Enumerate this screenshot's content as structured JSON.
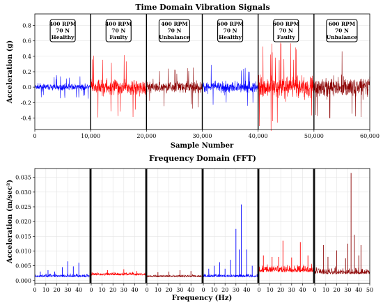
{
  "chart_data": [
    {
      "type": "line",
      "title": "Time Domain Vibration Signals",
      "xlabel": "Sample Number",
      "ylabel": "Acceleration (g)",
      "xlim": [
        0,
        60000
      ],
      "ylim": [
        -0.55,
        0.95
      ],
      "x_ticks": [
        "0",
        "10,000",
        "20,000",
        "30,000",
        "40,000",
        "50,000",
        "60,000"
      ],
      "y_ticks": [
        "-0.4",
        "-0.2",
        "0.0",
        "0.2",
        "0.4",
        "0.6",
        "0.8"
      ],
      "grid": true,
      "segments": [
        {
          "x_range": [
            0,
            10000
          ],
          "color": "#0000ff",
          "rpm": "400 RPM",
          "load": "70 N",
          "condition": "Healthy",
          "typical_amplitude": 0.07,
          "peak": 0.16
        },
        {
          "x_range": [
            10000,
            20000
          ],
          "color": "#ff0000",
          "rpm": "400 RPM",
          "load": "70 N",
          "condition": "Faulty",
          "typical_amplitude": 0.18,
          "peak": 0.45
        },
        {
          "x_range": [
            20000,
            30000
          ],
          "color": "#8b0000",
          "rpm": "400 RPM",
          "load": "70 N",
          "condition": "Unbalance",
          "typical_amplitude": 0.13,
          "peak": 0.28
        },
        {
          "x_range": [
            30000,
            40000
          ],
          "color": "#0000ff",
          "rpm": "600 RPM",
          "load": "70 N",
          "condition": "Healthy",
          "typical_amplitude": 0.13,
          "peak": 0.3
        },
        {
          "x_range": [
            40000,
            50000
          ],
          "color": "#ff0000",
          "rpm": "600 RPM",
          "load": "70 N",
          "condition": "Faulty",
          "typical_amplitude": 0.25,
          "peak": 0.58
        },
        {
          "x_range": [
            50000,
            60000
          ],
          "color": "#8b0000",
          "rpm": "600 RPM",
          "load": "70 N",
          "condition": "Unbalance",
          "typical_amplitude": 0.22,
          "peak": 0.55
        }
      ]
    },
    {
      "type": "line",
      "title": "Frequency Domain (FFT)",
      "xlabel": "Frequency (Hz)",
      "ylabel": "Acceleration (m/sec²)",
      "xlim_per_panel": [
        0,
        50
      ],
      "ylim": [
        -0.001,
        0.038
      ],
      "x_ticks": [
        "0",
        "10",
        "20",
        "30",
        "40"
      ],
      "x_ticks_last_panel": [
        "0",
        "10",
        "20",
        "30",
        "40",
        "50"
      ],
      "y_ticks": [
        "0.000",
        "0.005",
        "0.010",
        "0.015",
        "0.020",
        "0.025",
        "0.030",
        "0.035"
      ],
      "grid": true,
      "panels": [
        {
          "color": "#0000ff",
          "baseline": 0.0012,
          "noise": 0.0012,
          "peaks": [
            {
              "f": 5,
              "a": 0.003
            },
            {
              "f": 12,
              "a": 0.0035
            },
            {
              "f": 18,
              "a": 0.003
            },
            {
              "f": 25,
              "a": 0.0045
            },
            {
              "f": 30,
              "a": 0.0065
            },
            {
              "f": 35,
              "a": 0.0048
            },
            {
              "f": 40,
              "a": 0.006
            }
          ]
        },
        {
          "color": "#ff0000",
          "baseline": 0.0018,
          "noise": 0.0012,
          "peaks": [
            {
              "f": 15,
              "a": 0.0035
            },
            {
              "f": 30,
              "a": 0.0038
            },
            {
              "f": 42,
              "a": 0.0032
            }
          ]
        },
        {
          "color": "#8b0000",
          "baseline": 0.0012,
          "noise": 0.001,
          "peaks": [
            {
              "f": 10,
              "a": 0.0028
            },
            {
              "f": 20,
              "a": 0.003
            },
            {
              "f": 30,
              "a": 0.0035
            },
            {
              "f": 40,
              "a": 0.0032
            }
          ]
        },
        {
          "color": "#0000ff",
          "baseline": 0.0012,
          "noise": 0.0012,
          "peaks": [
            {
              "f": 5,
              "a": 0.004
            },
            {
              "f": 10,
              "a": 0.005
            },
            {
              "f": 15,
              "a": 0.0062
            },
            {
              "f": 20,
              "a": 0.004
            },
            {
              "f": 25,
              "a": 0.007
            },
            {
              "f": 30,
              "a": 0.0175
            },
            {
              "f": 33,
              "a": 0.0105
            },
            {
              "f": 35,
              "a": 0.0258
            },
            {
              "f": 40,
              "a": 0.0105
            },
            {
              "f": 45,
              "a": 0.005
            }
          ]
        },
        {
          "color": "#ff0000",
          "baseline": 0.0028,
          "noise": 0.003,
          "peaks": [
            {
              "f": 4,
              "a": 0.0085
            },
            {
              "f": 12,
              "a": 0.008
            },
            {
              "f": 18,
              "a": 0.008
            },
            {
              "f": 22,
              "a": 0.0135
            },
            {
              "f": 30,
              "a": 0.0078
            },
            {
              "f": 38,
              "a": 0.013
            },
            {
              "f": 45,
              "a": 0.0085
            }
          ]
        },
        {
          "color": "#8b0000",
          "baseline": 0.0022,
          "noise": 0.0025,
          "peaks": [
            {
              "f": 8,
              "a": 0.012
            },
            {
              "f": 12,
              "a": 0.008
            },
            {
              "f": 20,
              "a": 0.0102
            },
            {
              "f": 28,
              "a": 0.0075
            },
            {
              "f": 30,
              "a": 0.0125
            },
            {
              "f": 33,
              "a": 0.0365
            },
            {
              "f": 36,
              "a": 0.0155
            },
            {
              "f": 40,
              "a": 0.0085
            },
            {
              "f": 42,
              "a": 0.012
            }
          ]
        }
      ]
    }
  ]
}
